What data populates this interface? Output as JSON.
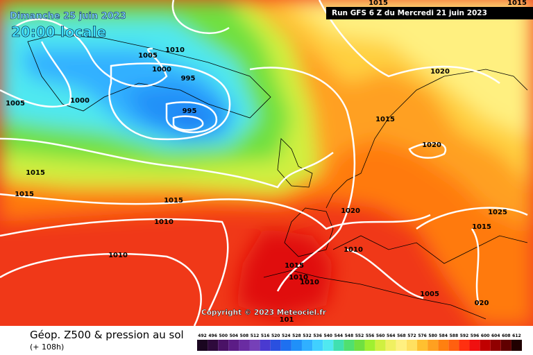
{
  "header": {
    "date": "Dimanche 25 juin 2023",
    "time": "20:00 locale",
    "run": "Run GFS 6 Z du Mercredi 21 juin 2023"
  },
  "copyright": "Copyright © 2023 Meteociel.fr",
  "legend": {
    "title": "Géop. Z500 & pression au sol",
    "subtitle": "(+ 108h)",
    "scale": [
      492,
      496,
      500,
      504,
      508,
      512,
      516,
      520,
      524,
      528,
      532,
      536,
      540,
      544,
      548,
      552,
      556,
      560,
      564,
      568,
      572,
      576,
      580,
      584,
      588,
      592,
      596,
      600,
      604,
      608,
      612
    ],
    "colors": [
      "#1a0620",
      "#2e0a3c",
      "#4a1266",
      "#5c1c86",
      "#6a2ca2",
      "#7640b8",
      "#4a3ad0",
      "#2a50e0",
      "#1e70f0",
      "#2090f8",
      "#30b0ff",
      "#40d0ff",
      "#50e8f0",
      "#40e0b0",
      "#50e070",
      "#70e040",
      "#a0f030",
      "#d0f040",
      "#f0f060",
      "#fff080",
      "#ffe060",
      "#ffc030",
      "#ffa020",
      "#ff8010",
      "#ff6010",
      "#ff3010",
      "#f01010",
      "#c00000",
      "#900000",
      "#600000",
      "#200000"
    ]
  },
  "isobar_labels": [
    "1015",
    "1015",
    "1005",
    "1010",
    "1000",
    "995",
    "1005",
    "1000",
    "995",
    "1015",
    "1020",
    "1020",
    "1015",
    "1015",
    "1015",
    "1020",
    "1025",
    "1015",
    "1010",
    "1010",
    "1010",
    "1015",
    "1010",
    "1010",
    "1005",
    "020",
    "101"
  ]
}
